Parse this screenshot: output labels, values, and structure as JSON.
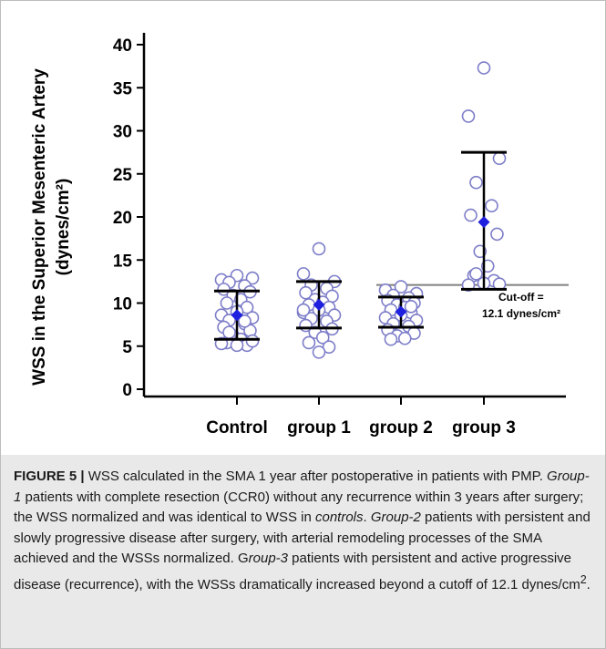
{
  "chart_data": {
    "type": "scatter",
    "ylabel_line1": "WSS in the Superior Mesenteric Artery",
    "ylabel_line2": "(dynes/cm²)",
    "xlabel": "",
    "categories": [
      "Control",
      "group 1",
      "group 2",
      "group 3"
    ],
    "ylim": [
      0,
      40
    ],
    "yticks": [
      0,
      5,
      10,
      15,
      20,
      25,
      30,
      35,
      40
    ],
    "grid": false,
    "point_color": "#7d7dc9",
    "mean_color": "#1f1fe0",
    "cutoff_color": "#808080",
    "series": [
      {
        "category": "Control",
        "points": [
          13.2,
          12.7,
          12.9,
          12.4,
          12.0,
          11.6,
          11.3,
          10.9,
          10.4,
          10.0,
          9.5,
          9.0,
          8.6,
          8.3,
          8.0,
          7.6,
          7.2,
          6.8,
          6.2,
          5.8,
          5.4,
          5.1,
          5.1,
          5.3,
          5.6,
          6.6,
          7.9
        ],
        "mean": 8.6,
        "upper": 11.4,
        "lower": 5.8
      },
      {
        "category": "group 1",
        "points": [
          16.3,
          13.4,
          12.5,
          12.1,
          11.7,
          11.2,
          10.8,
          10.4,
          10.1,
          9.8,
          9.5,
          9.2,
          8.9,
          8.6,
          8.2,
          7.9,
          7.4,
          7.0,
          6.6,
          6.0,
          5.4,
          4.9,
          4.3,
          9.2
        ],
        "mean": 9.8,
        "upper": 12.5,
        "lower": 7.1
      },
      {
        "category": "group 2",
        "points": [
          11.9,
          11.5,
          11.1,
          10.9,
          10.6,
          10.3,
          10.0,
          9.8,
          9.5,
          9.2,
          8.9,
          8.6,
          8.3,
          8.0,
          7.6,
          7.3,
          6.9,
          6.5,
          6.2,
          5.9,
          5.8,
          9.6
        ],
        "mean": 9.0,
        "upper": 10.7,
        "lower": 7.2
      },
      {
        "category": "group 3",
        "points": [
          37.3,
          31.7,
          26.8,
          24.0,
          21.3,
          20.2,
          18.0,
          16.0,
          14.3,
          13.2,
          12.6,
          12.3,
          12.1,
          12.2,
          13.4
        ],
        "mean": 19.4,
        "upper": 27.5,
        "lower": 11.6
      }
    ],
    "cutoff": {
      "value": 12.1,
      "label_line1": "Cut-off =",
      "label_line2": "12.1 dynes/cm²"
    }
  },
  "caption": {
    "label": "FIGURE 5 |",
    "text_1": " WSS calculated in the SMA 1 year after postoperative in patients with PMP. ",
    "g1_name": "Group-1",
    "text_2": " patients with complete resection (CCR0) without any recurrence within 3 years after surgery; the WSS normalized and was identical to WSS in ",
    "controls_word": "controls",
    "text_3": ". ",
    "g2_name": "Group-2",
    "text_4": " patients with persistent and slowly progressive disease after surgery, with arterial remodeling processes of the SMA achieved and the WSSs normalized. G",
    "g3_name": "roup-3",
    "text_5": " patients with persistent and active progressive disease (recurrence), with the WSSs dramatically increased beyond a cutoff of 12.1 dynes/cm",
    "sup": "2",
    "text_6": "."
  }
}
